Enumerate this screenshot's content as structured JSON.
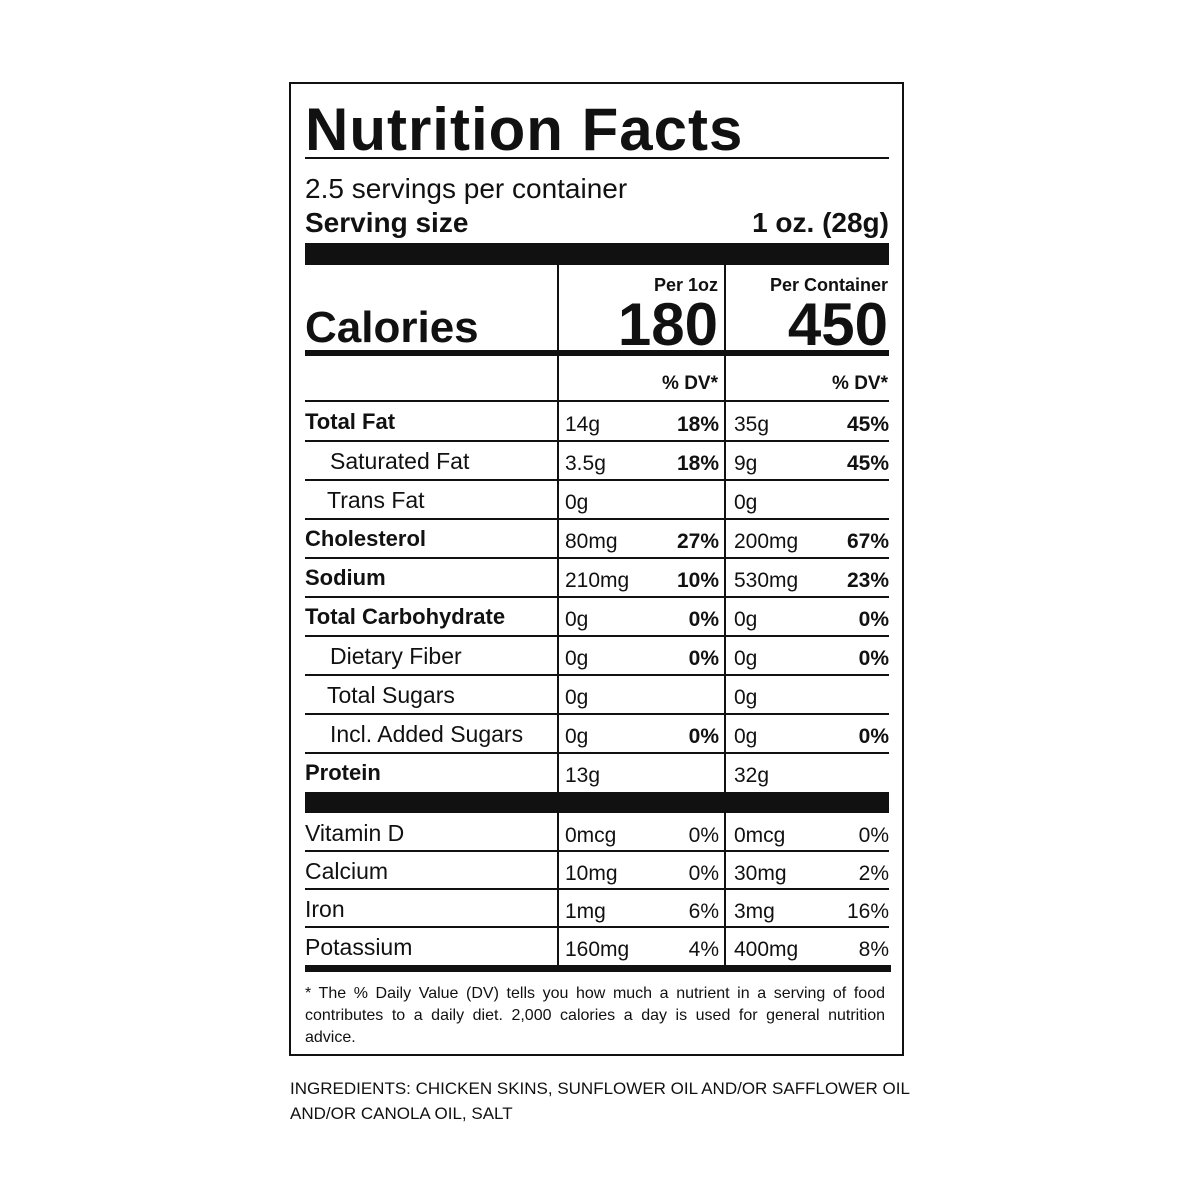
{
  "header": {
    "title": "Nutrition Facts",
    "servings": "2.5 servings per container",
    "serving_size_label": "Serving size",
    "serving_size_value": "1 oz. (28g)"
  },
  "calories": {
    "label": "Calories",
    "col1_heading": "Per 1oz",
    "col1_value": "180",
    "col2_heading": "Per Container",
    "col2_value": "450"
  },
  "dv_headings": [
    "% DV*",
    "% DV*"
  ],
  "nutrients": [
    {
      "name": "Total Fat",
      "bold": true,
      "indent": 0,
      "amount1": "14g",
      "dv1": "18%",
      "amount2": "35g",
      "dv2": "45%"
    },
    {
      "name": "Saturated Fat",
      "bold": false,
      "indent": 1,
      "amount1": "3.5g",
      "dv1": "18%",
      "amount2": "9g",
      "dv2": "45%"
    },
    {
      "name": "Trans Fat",
      "bold": false,
      "indent": 1,
      "amount1": "0g",
      "amount2": "0g"
    },
    {
      "name": "Cholesterol",
      "bold": true,
      "indent": 0,
      "amount1": "80mg",
      "dv1": "27%",
      "amount2": "200mg",
      "dv2": "67%"
    },
    {
      "name": "Sodium",
      "bold": true,
      "indent": 0,
      "amount1": "210mg",
      "dv1": "10%",
      "amount2": "530mg",
      "dv2": "23%"
    },
    {
      "name": "Total Carbohydrate",
      "bold": true,
      "indent": 0,
      "amount1": "0g",
      "dv1": "0%",
      "amount2": "0g",
      "dv2": "0%"
    },
    {
      "name": "Dietary Fiber",
      "bold": false,
      "indent": 1,
      "amount1": "0g",
      "dv1": "0%",
      "amount2": "0g",
      "dv2": "0%"
    },
    {
      "name": "Total Sugars",
      "bold": false,
      "indent": 1,
      "amount1": "0g",
      "amount2": "0g"
    },
    {
      "name": "Incl. Added Sugars",
      "bold": false,
      "indent": 1,
      "amount1": "0g",
      "dv1": "0%",
      "amount2": "0g",
      "dv2": "0%"
    },
    {
      "name": "Protein",
      "bold": true,
      "indent": 0,
      "amount1": "13g",
      "amount2": "32g"
    }
  ],
  "vitamins": [
    {
      "name": "Vitamin D",
      "amount1": "0mcg",
      "dv1": "0%",
      "amount2": "0mcg",
      "dv2": "0%"
    },
    {
      "name": "Calcium",
      "amount1": "10mg",
      "dv1": "0%",
      "amount2": "30mg",
      "dv2": "2%"
    },
    {
      "name": "Iron",
      "amount1": "1mg",
      "dv1": "6%",
      "amount2": "3mg",
      "dv2": "16%"
    },
    {
      "name": "Potassium",
      "amount1": "160mg",
      "dv1": "4%",
      "amount2": "400mg",
      "dv2": "8%"
    }
  ],
  "footnote": "* The % Daily Value (DV) tells you how much a nutrient in a serving of food contributes to a daily diet. 2,000 calories a day is used for general nutrition advice.",
  "ingredients": "INGREDIENTS: CHICKEN SKINS, SUNFLOWER OIL AND/OR SAFFLOWER OIL AND/OR CANOLA OIL, SALT"
}
